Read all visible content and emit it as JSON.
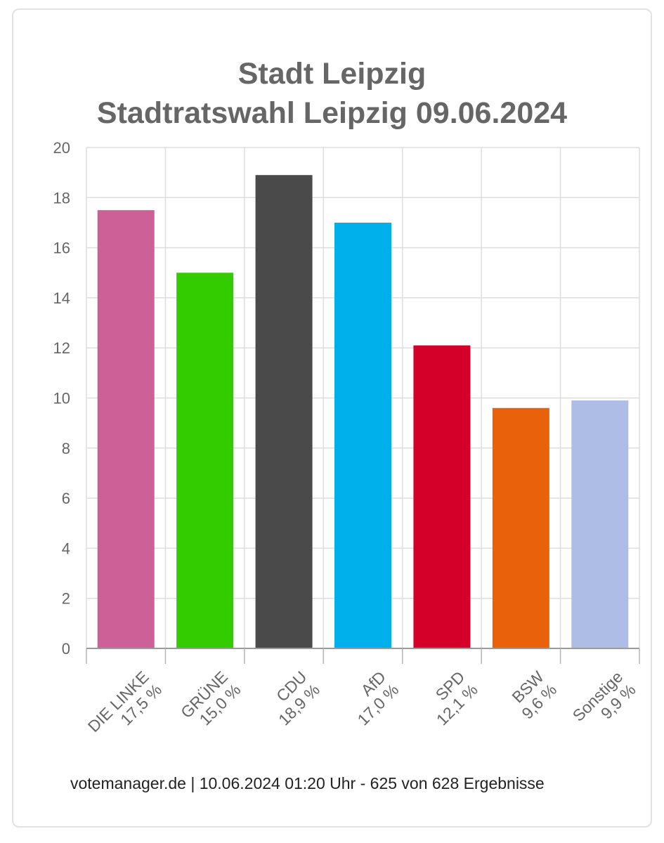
{
  "chart_data": {
    "type": "bar",
    "title": "Stadt Leipzig",
    "subtitle": "Stadtratswahl Leipzig 09.06.2024",
    "xlabel": "",
    "ylabel": "",
    "ylim": [
      0,
      20
    ],
    "yticks": [
      0,
      2,
      4,
      6,
      8,
      10,
      12,
      14,
      16,
      18,
      20
    ],
    "grid": true,
    "legend": "none",
    "categories": [
      "DIE LINKE",
      "GRÜNE",
      "CDU",
      "AfD",
      "SPD",
      "BSW",
      "Sonstige"
    ],
    "value_labels": [
      "17,5 %",
      "15,0 %",
      "18,9 %",
      "17,0 %",
      "12,1 %",
      "9,6 %",
      "9,9 %"
    ],
    "values": [
      17.5,
      15.0,
      18.9,
      17.0,
      12.1,
      9.6,
      9.9
    ],
    "colors": [
      "#cd6096",
      "#33cc00",
      "#4a4a4a",
      "#00b0eb",
      "#d5002a",
      "#ea610c",
      "#adbde6"
    ]
  },
  "footer": {
    "text": "votemanager.de | 10.06.2024 01:20 Uhr - 625 von 628 Ergebnisse"
  }
}
